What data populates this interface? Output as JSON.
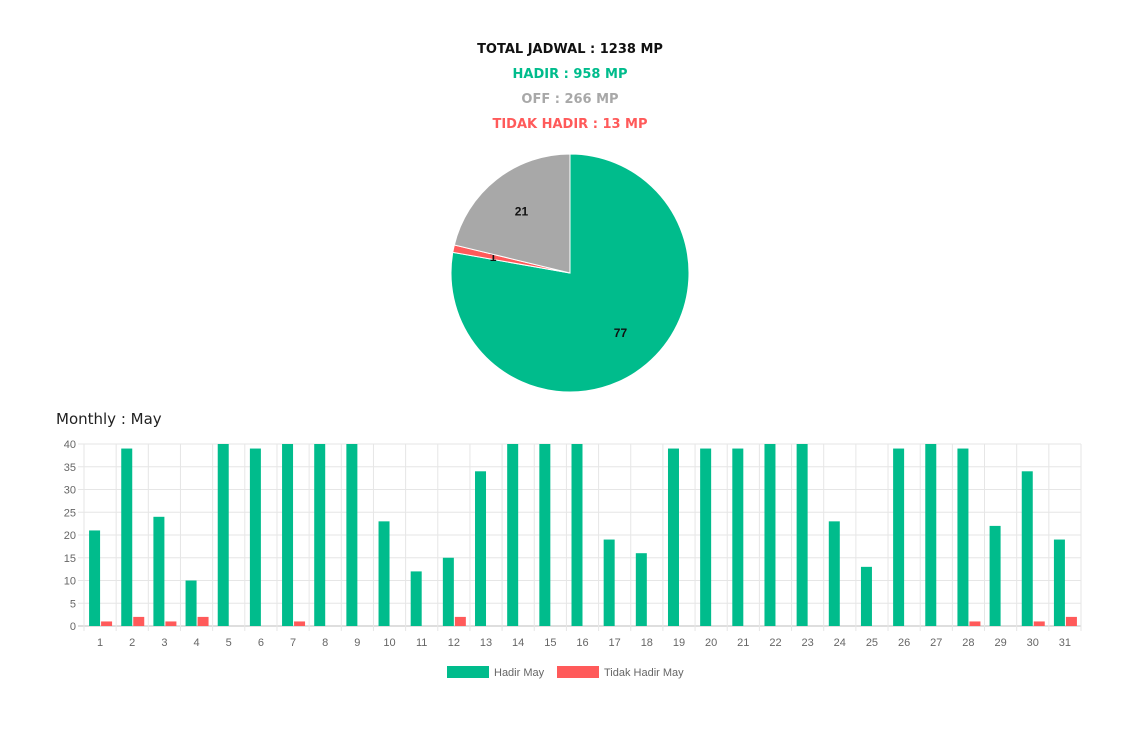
{
  "summary": {
    "total": "TOTAL JADWAL : 1238 MP",
    "hadir": "HADIR : 958 MP",
    "off": "OFF : 266 MP",
    "tidak_hadir": "TIDAK HADIR : 13 MP"
  },
  "colors": {
    "hadir": "#00bc8c",
    "off": "#a8a8a8",
    "tidak_hadir": "#ff5a5a"
  },
  "chart_data": [
    {
      "type": "pie",
      "categories": [
        "Hadir",
        "Tidak Hadir",
        "Off"
      ],
      "values": [
        77,
        1,
        21
      ],
      "colors": [
        "#00bc8c",
        "#ff5a5a",
        "#a8a8a8"
      ]
    },
    {
      "type": "bar",
      "title": "Monthly : May",
      "categories": [
        "1",
        "2",
        "3",
        "4",
        "5",
        "6",
        "7",
        "8",
        "9",
        "10",
        "11",
        "12",
        "13",
        "14",
        "15",
        "16",
        "17",
        "18",
        "19",
        "20",
        "21",
        "22",
        "23",
        "24",
        "25",
        "26",
        "27",
        "28",
        "29",
        "30",
        "31"
      ],
      "series": [
        {
          "name": "Hadir May",
          "color": "#00bc8c",
          "values": [
            21,
            39,
            24,
            10,
            40,
            39,
            40,
            40,
            40,
            23,
            12,
            15,
            34,
            40,
            40,
            40,
            19,
            16,
            39,
            39,
            39,
            40,
            40,
            23,
            13,
            39,
            40,
            39,
            22,
            34,
            19
          ]
        },
        {
          "name": "Tidak Hadir May",
          "color": "#ff5a5a",
          "values": [
            1,
            2,
            1,
            2,
            0,
            0,
            1,
            0,
            0,
            0,
            0,
            2,
            0,
            0,
            0,
            0,
            0,
            0,
            0,
            0,
            0,
            0,
            0,
            0,
            0,
            0,
            0,
            1,
            0,
            1,
            2
          ]
        }
      ],
      "ylim": [
        0,
        40
      ],
      "yticks": [
        0,
        5,
        10,
        15,
        20,
        25,
        30,
        35,
        40
      ],
      "grid": true,
      "legend": "bottom"
    }
  ]
}
